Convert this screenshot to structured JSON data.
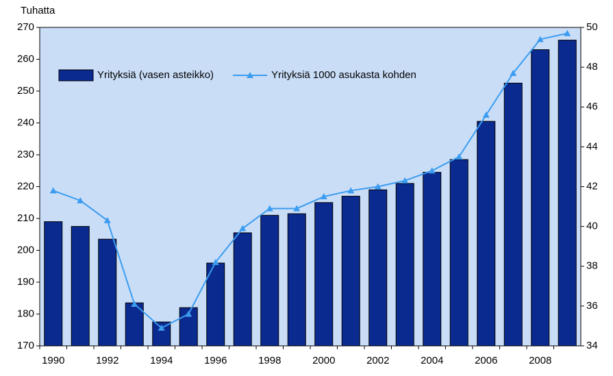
{
  "chart_data": {
    "type": "bar_line",
    "ylabel": "Tuhatta",
    "categories": [
      "1990",
      null,
      "1992",
      null,
      "1994",
      null,
      "1996",
      null,
      "1998",
      null,
      "2000",
      null,
      "2002",
      null,
      "2004",
      null,
      "2006",
      null,
      "2008",
      null
    ],
    "series": [
      {
        "name": "Yrityksiä (vasen asteikko)",
        "type": "bar",
        "color": "#0b2a8f",
        "values": [
          209,
          207.5,
          203.5,
          183.5,
          177.5,
          182,
          196,
          205.5,
          211,
          211.5,
          215,
          217,
          219,
          221,
          224.5,
          228.5,
          240.5,
          252.5,
          263,
          266
        ]
      },
      {
        "name": "Yrityksiä 1000 asukasta kohden",
        "type": "line",
        "axis": "y2",
        "color": "#3b9cf0",
        "values": [
          41.8,
          41.3,
          40.3,
          36.1,
          34.9,
          35.6,
          38.2,
          39.9,
          40.9,
          40.9,
          41.5,
          41.8,
          42.0,
          42.3,
          42.8,
          43.5,
          45.6,
          47.7,
          49.4,
          49.7
        ]
      }
    ],
    "ylim": [
      170,
      270
    ],
    "yticks": [
      170,
      180,
      190,
      200,
      210,
      220,
      230,
      240,
      250,
      260,
      270
    ],
    "y2lim": [
      34,
      50
    ],
    "y2ticks": [
      34,
      36,
      38,
      40,
      42,
      44,
      46,
      48,
      50
    ],
    "plot_background": "#c9ddf7",
    "grid": false,
    "legend": "upper left"
  }
}
